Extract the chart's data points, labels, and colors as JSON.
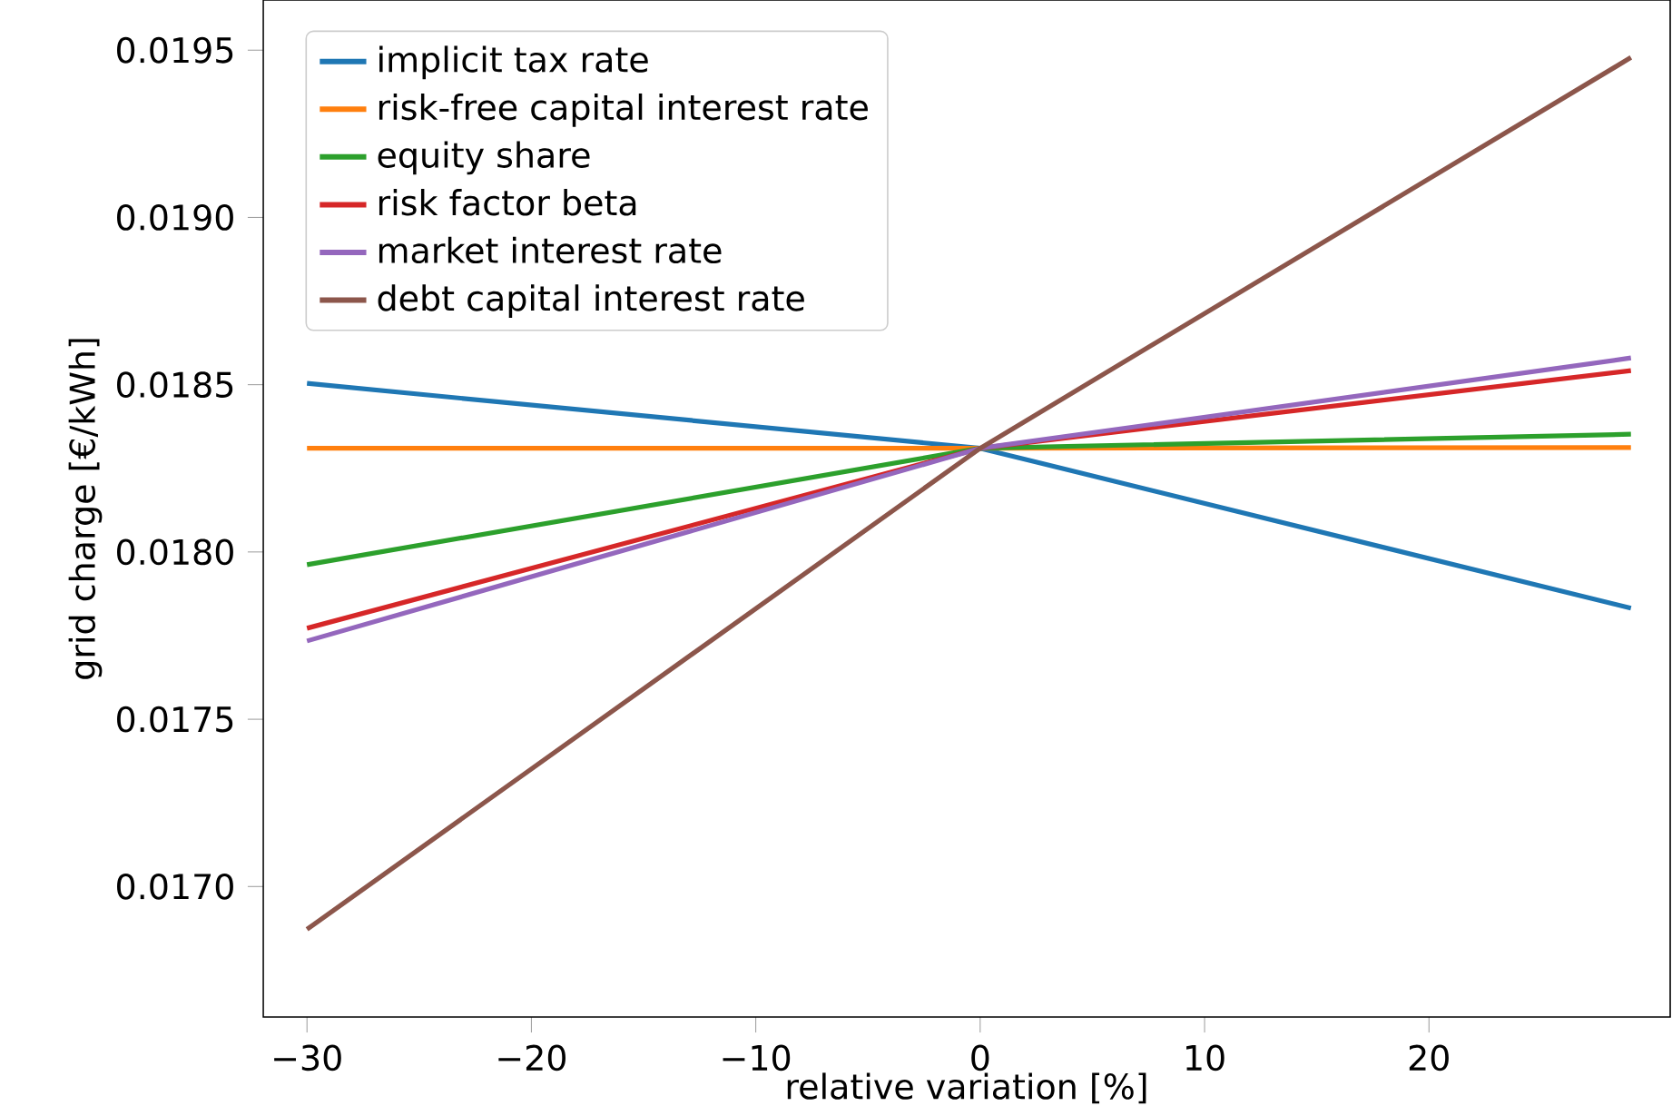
{
  "chart_data": {
    "type": "line",
    "xlabel": "relative variation [%]",
    "ylabel": "grid charge [€/kWh]",
    "x": [
      -30,
      0,
      29
    ],
    "series": [
      {
        "name": "implicit tax rate",
        "color": "#1f77b4",
        "values": [
          0.018504,
          0.01831,
          0.017832
        ]
      },
      {
        "name": "risk-free capital interest rate",
        "color": "#ff7f0e",
        "values": [
          0.01831,
          0.01831,
          0.018312
        ]
      },
      {
        "name": "equity share",
        "color": "#2ca02c",
        "values": [
          0.017962,
          0.01831,
          0.018352
        ]
      },
      {
        "name": "risk factor beta",
        "color": "#d62728",
        "values": [
          0.017772,
          0.01831,
          0.018542
        ]
      },
      {
        "name": "market interest rate",
        "color": "#9467bd",
        "values": [
          0.017734,
          0.01831,
          0.01858
        ]
      },
      {
        "name": "debt capital interest rate",
        "color": "#8c564b",
        "values": [
          0.016872,
          0.01831,
          0.019478
        ]
      }
    ],
    "xlim": [
      -31.95,
      30.75
    ],
    "ylim": [
      0.01661,
      0.01965
    ],
    "xticks": [
      {
        "value": -30,
        "label": "−30"
      },
      {
        "value": -20,
        "label": "−20"
      },
      {
        "value": -10,
        "label": "−10"
      },
      0,
      10,
      20
    ],
    "yticks": [
      {
        "value": 0.017,
        "label": "0.0170"
      },
      0.0175,
      {
        "value": 0.018,
        "label": "0.0180"
      },
      0.0185,
      {
        "value": 0.019,
        "label": "0.0190"
      },
      0.0195
    ],
    "legend": "top left",
    "grid": false,
    "marker": "none",
    "line_style": "solid"
  }
}
